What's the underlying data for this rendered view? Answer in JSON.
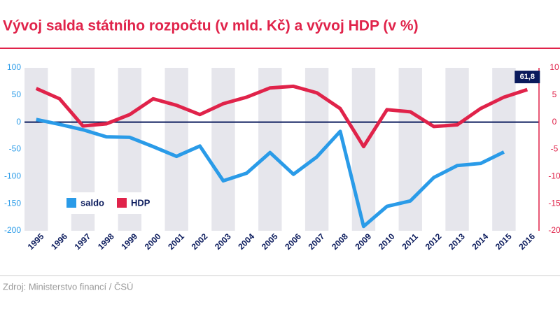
{
  "chart_data": {
    "type": "line",
    "title": "Vývoj salda státního rozpočtu (v mld. Kč) a vývoj HDP (v %)",
    "source": "Zdroj: Ministerstvo financí / ČSÚ",
    "categories": [
      "1995",
      "1996",
      "1997",
      "1998",
      "1999",
      "2000",
      "2001",
      "2002",
      "2003",
      "2004",
      "2005",
      "2006",
      "2007",
      "2008",
      "2009",
      "2010",
      "2011",
      "2012",
      "2013",
      "2014",
      "2015",
      "2016"
    ],
    "series": [
      {
        "name": "saldo",
        "color": "#2a9be8",
        "axis": "y",
        "values": [
          5,
          -4,
          -14,
          -27,
          -28,
          -45,
          -63,
          -44,
          -108,
          -94,
          -56,
          -96,
          -64,
          -17,
          -192,
          -155,
          -145,
          -102,
          -80,
          -76,
          -55,
          null
        ]
      },
      {
        "name": "HDP",
        "color": "#e0234a",
        "axis": "y2",
        "values": [
          6.2,
          4.3,
          -0.7,
          -0.3,
          1.4,
          4.3,
          3.1,
          1.4,
          3.4,
          4.6,
          6.3,
          6.6,
          5.4,
          2.5,
          -4.5,
          2.3,
          1.9,
          -0.8,
          -0.5,
          2.5,
          4.6,
          6.0
        ]
      }
    ],
    "annotations": [
      {
        "text": "61,8"
      }
    ],
    "ylim": [
      -200,
      100
    ],
    "yticks": [
      100,
      50,
      0,
      -50,
      -100,
      -150,
      -200
    ],
    "y2lim": [
      -20,
      10
    ],
    "y2ticks": [
      10,
      5,
      0,
      -5,
      -10,
      -15,
      -20
    ],
    "legend": "lower-left"
  }
}
